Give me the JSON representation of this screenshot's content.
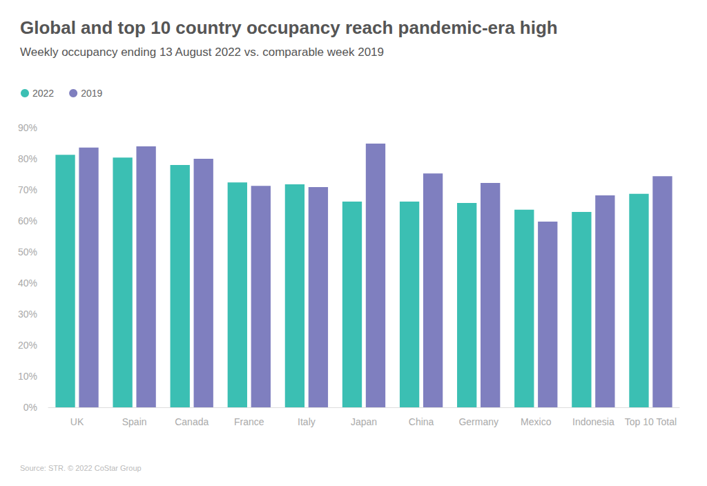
{
  "chart_data": {
    "type": "bar",
    "title": "Global and top 10 country occupancy reach pandemic-era high",
    "subtitle": "Weekly occupancy ending 13 August 2022 vs. comparable week 2019",
    "source": "Source: STR. © 2022 CoStar Group",
    "categories": [
      "UK",
      "Spain",
      "Canada",
      "France",
      "Italy",
      "Japan",
      "China",
      "Germany",
      "Mexico",
      "Indonesia",
      "Top 10 Total"
    ],
    "series": [
      {
        "name": "2022",
        "color": "#3bbfb3",
        "values": [
          81.3,
          80.4,
          78.0,
          72.4,
          71.8,
          66.2,
          66.2,
          65.8,
          63.6,
          62.9,
          68.7
        ]
      },
      {
        "name": "2019",
        "color": "#7f7fbf",
        "values": [
          83.6,
          84.0,
          80.0,
          71.3,
          70.9,
          84.9,
          75.3,
          72.2,
          59.8,
          68.2,
          74.4
        ]
      }
    ],
    "ylim": [
      0,
      90
    ],
    "yticks": [
      {
        "value": 0,
        "label": "0%"
      },
      {
        "value": 10,
        "label": "10%"
      },
      {
        "value": 20,
        "label": "20%"
      },
      {
        "value": 30,
        "label": "30%"
      },
      {
        "value": 40,
        "label": "40%"
      },
      {
        "value": 50,
        "label": "50%"
      },
      {
        "value": 60,
        "label": "60%"
      },
      {
        "value": 70,
        "label": "70%"
      },
      {
        "value": 80,
        "label": "80%"
      },
      {
        "value": 90,
        "label": "90%"
      }
    ],
    "grid": false,
    "legend": "top-left"
  }
}
